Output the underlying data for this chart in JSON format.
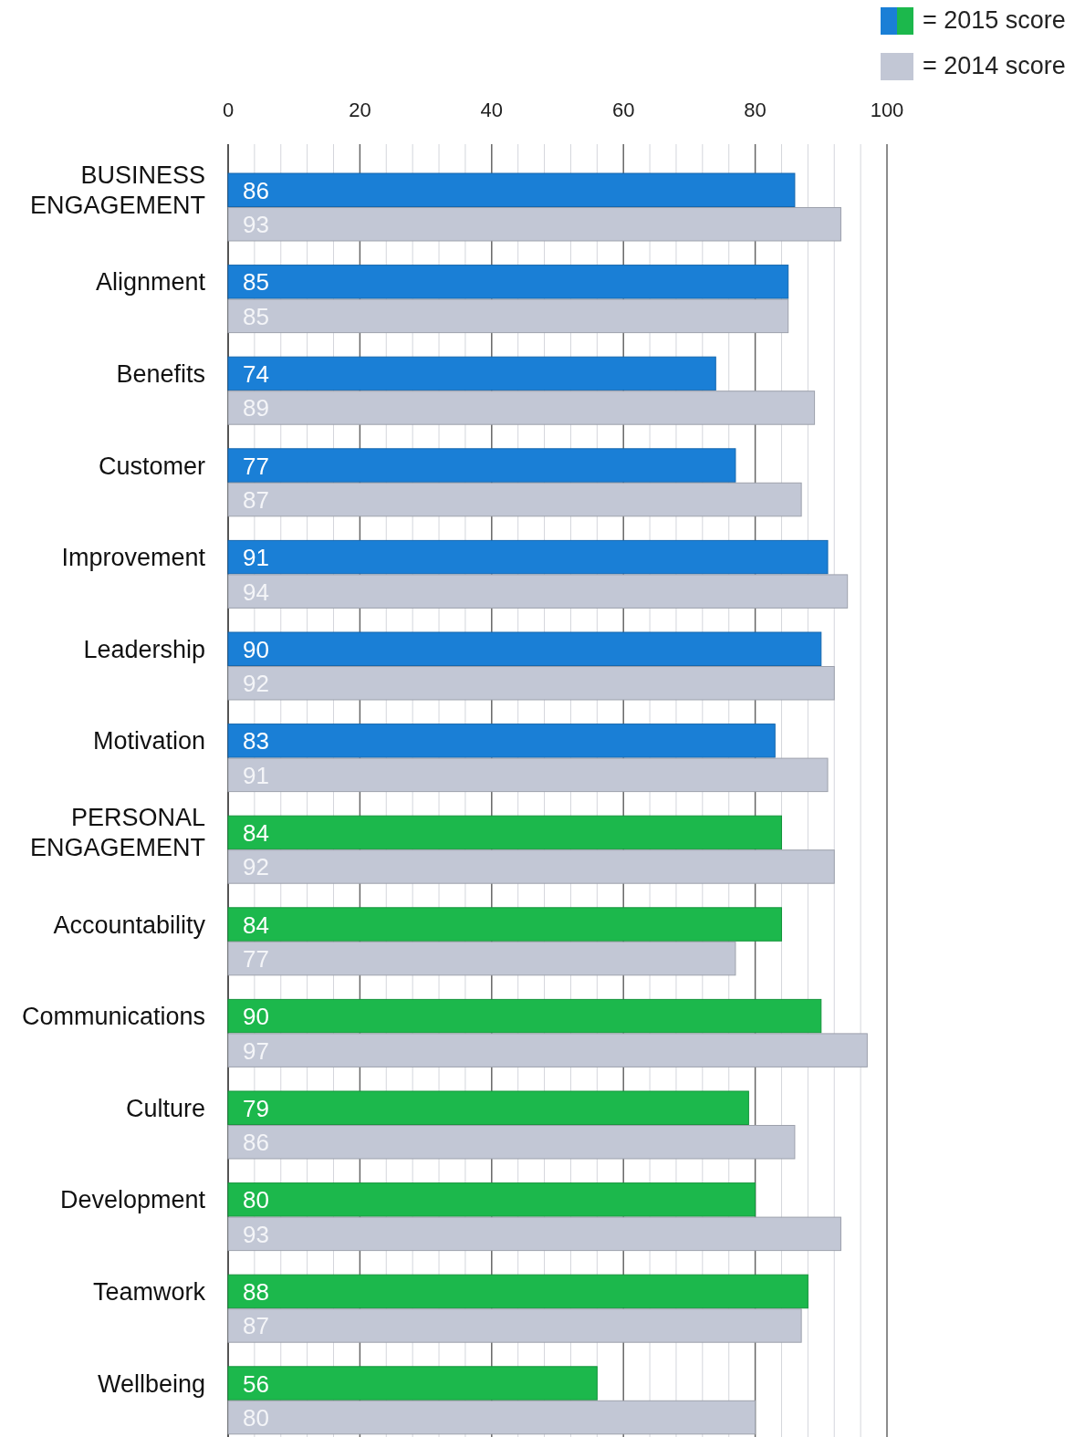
{
  "chart_data": {
    "type": "bar",
    "orientation": "horizontal",
    "categories": [
      "BUSINESS ENGAGEMENT",
      "Alignment",
      "Benefits",
      "Customer",
      "Improvement",
      "Leadership",
      "Motivation",
      "PERSONAL ENGAGEMENT",
      "Accountability",
      "Communications",
      "Culture",
      "Development",
      "Teamwork",
      "Wellbeing"
    ],
    "series": [
      {
        "name": "= 2015 score",
        "colors": [
          "#1a7fd6",
          "#1a7fd6",
          "#1a7fd6",
          "#1a7fd6",
          "#1a7fd6",
          "#1a7fd6",
          "#1a7fd6",
          "#1cb84c",
          "#1cb84c",
          "#1cb84c",
          "#1cb84c",
          "#1cb84c",
          "#1cb84c",
          "#1cb84c"
        ],
        "values": [
          86,
          85,
          74,
          77,
          91,
          90,
          83,
          84,
          84,
          90,
          79,
          80,
          88,
          56
        ]
      },
      {
        "name": "= 2014 score",
        "color": "#c2c7d5",
        "values": [
          93,
          85,
          89,
          87,
          94,
          92,
          91,
          92,
          77,
          97,
          86,
          93,
          87,
          80
        ]
      }
    ],
    "xlim": [
      0,
      100
    ],
    "xticks": [
      0,
      {
        "value": 4,
        "label": null
      },
      {
        "value": 8,
        "label": null
      },
      {
        "value": 12,
        "label": null
      },
      {
        "value": 16,
        "label": null
      },
      20,
      {
        "value": 24,
        "label": null
      },
      {
        "value": 28,
        "label": null
      },
      {
        "value": 32,
        "label": null
      },
      {
        "value": 36,
        "label": null
      },
      40,
      {
        "value": 44,
        "label": null
      },
      {
        "value": 48,
        "label": null
      },
      {
        "value": 52,
        "label": null
      },
      {
        "value": 56,
        "label": null
      },
      60,
      {
        "value": 64,
        "label": null
      },
      {
        "value": 68,
        "label": null
      },
      {
        "value": 72,
        "label": null
      },
      {
        "value": 76,
        "label": null
      },
      80,
      {
        "value": 84,
        "label": null
      },
      {
        "value": 88,
        "label": null
      },
      {
        "value": 92,
        "label": null
      },
      {
        "value": 96,
        "label": null
      },
      100
    ],
    "grid": "x",
    "data_labels": true,
    "legend": "top right"
  }
}
